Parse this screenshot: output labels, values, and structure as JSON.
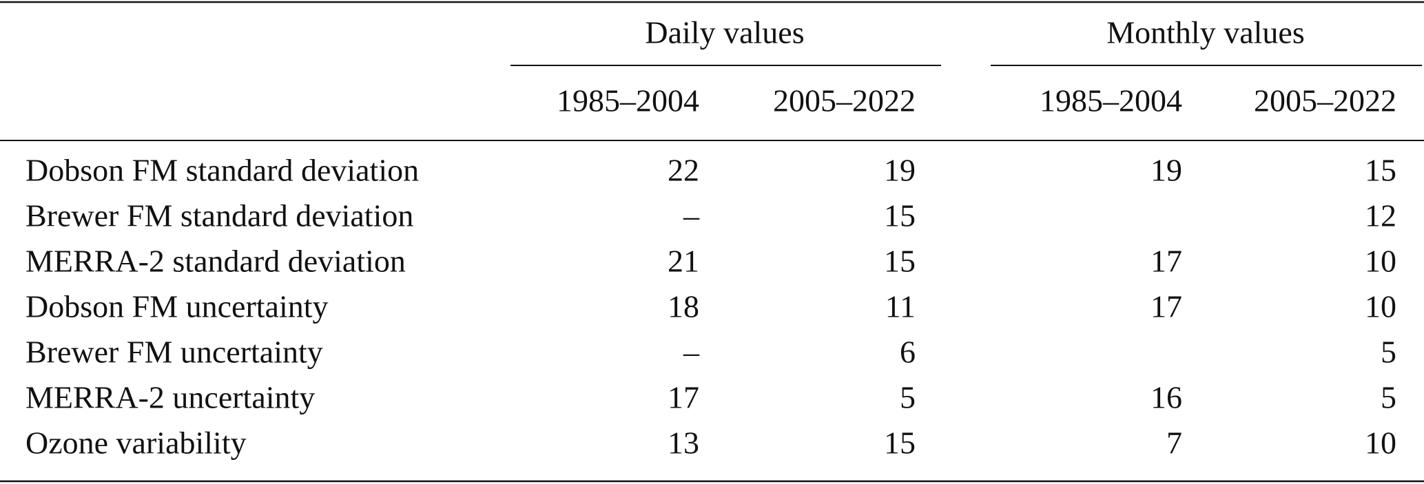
{
  "table": {
    "groups": [
      "Daily values",
      "Monthly values"
    ],
    "columns": [
      "1985–2004",
      "2005–2022",
      "1985–2004",
      "2005–2022"
    ],
    "rows": [
      [
        "Dobson FM standard deviation",
        "22",
        "19",
        "19",
        "15"
      ],
      [
        "Brewer FM standard deviation",
        "–",
        "15",
        null,
        "12"
      ],
      [
        "MERRA-2 standard deviation",
        "21",
        "15",
        "17",
        "10"
      ],
      [
        "Dobson FM uncertainty",
        "18",
        "11",
        "17",
        "10"
      ],
      [
        "Brewer FM uncertainty",
        "–",
        "6",
        null,
        "5"
      ],
      [
        "MERRA-2 uncertainty",
        "17",
        "5",
        "16",
        "5"
      ],
      [
        "Ozone variability",
        "13",
        "15",
        "7",
        "10"
      ]
    ]
  }
}
